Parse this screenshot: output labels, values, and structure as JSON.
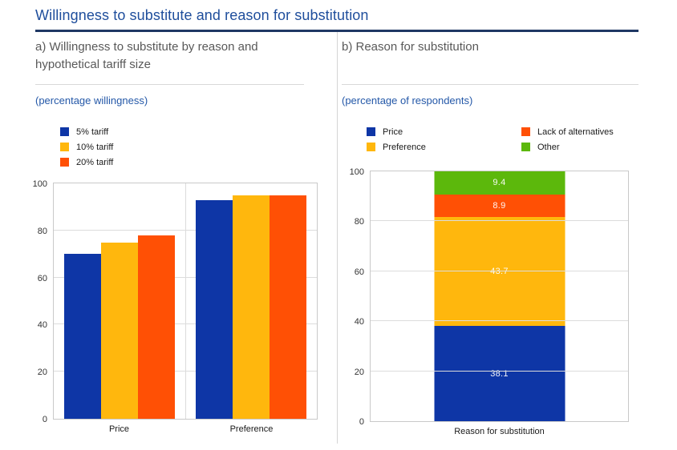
{
  "page": {
    "title": "Willingness to substitute and reason for substitution"
  },
  "colors": {
    "title_blue": "#1F4E9C",
    "rule_navy": "#1F3864",
    "note_blue": "#2458A8",
    "subtitle_gray": "#595959",
    "series_blue": "#0E36A6",
    "series_yellow": "#FFB70D",
    "series_orange": "#FF5005",
    "series_green": "#5CB80C"
  },
  "panel_a": {
    "subtitle": "a) Willingness to substitute by reason and hypothetical tariff size",
    "axis_note": "(percentage willingness)"
  },
  "panel_b": {
    "subtitle": "b) Reason for substitution",
    "axis_note": "(percentage of respondents)"
  },
  "chart_data": [
    {
      "type": "bar",
      "title": "a) Willingness to substitute by reason and hypothetical tariff size",
      "ylabel": "(percentage willingness)",
      "categories": [
        "Price",
        "Preference"
      ],
      "series": [
        {
          "name": "5% tariff",
          "color": "#0E36A6",
          "values": [
            70,
            93
          ]
        },
        {
          "name": "10% tariff",
          "color": "#FFB70D",
          "values": [
            75,
            95
          ]
        },
        {
          "name": "20% tariff",
          "color": "#FF5005",
          "values": [
            78,
            95
          ]
        }
      ],
      "ylim": [
        0,
        100
      ],
      "yticks": [
        0,
        20,
        40,
        60,
        80,
        100
      ],
      "grid": true,
      "legend_position": "top-left"
    },
    {
      "type": "bar",
      "subtype": "stacked",
      "stack_order": "bottom-to-top",
      "title": "b) Reason for substitution",
      "ylabel": "(percentage of respondents)",
      "categories": [
        "Reason for substitution"
      ],
      "series": [
        {
          "name": "Price",
          "color": "#0E36A6",
          "values": [
            38.1
          ]
        },
        {
          "name": "Preference",
          "color": "#FFB70D",
          "values": [
            43.7
          ]
        },
        {
          "name": "Lack of alternatives",
          "color": "#FF5005",
          "values": [
            8.9
          ]
        },
        {
          "name": "Other",
          "color": "#5CB80C",
          "values": [
            9.4
          ]
        }
      ],
      "data_labels": [
        "38.1",
        "43.7",
        "8.9",
        "9.4"
      ],
      "ylim": [
        0,
        100
      ],
      "yticks": [
        0,
        20,
        40,
        60,
        80,
        100
      ],
      "grid": true,
      "legend_position": "top"
    }
  ]
}
